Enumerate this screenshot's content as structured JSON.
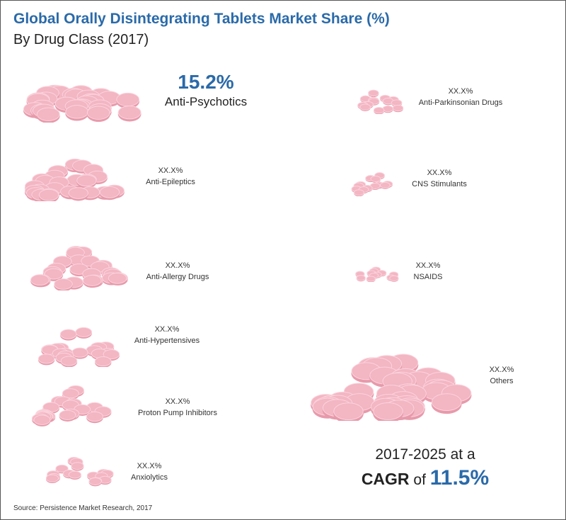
{
  "title": "Global Orally Disintegrating Tablets Market Share (%)",
  "subtitle": "By Drug Class (2017)",
  "segments": [
    {
      "value": "15.2%",
      "label": "Anti-Psychotics"
    },
    {
      "value": "XX.X%",
      "label": "Anti-Parkinsonian Drugs"
    },
    {
      "value": "XX.X%",
      "label": "Anti-Epileptics"
    },
    {
      "value": "XX.X%",
      "label": "CNS Stimulants"
    },
    {
      "value": "XX.X%",
      "label": "Anti-Allergy Drugs"
    },
    {
      "value": "XX.X%",
      "label": "NSAIDS"
    },
    {
      "value": "XX.X%",
      "label": "Anti-Hypertensives"
    },
    {
      "value": "XX.X%",
      "label": "Others"
    },
    {
      "value": "XX.X%",
      "label": "Proton Pump Inhibitors"
    },
    {
      "value": "XX.X%",
      "label": "Anxiolytics"
    }
  ],
  "cagr": {
    "line1": "2017-2025 at a",
    "word": "CAGR",
    "of": "of",
    "value": "11.5%"
  },
  "source": "Source: Persistence Market Research, 2017",
  "colors": {
    "accent": "#2a6aa9",
    "pill": "#f3b6c3"
  },
  "pill_icon": "tablet-pile-icon"
}
